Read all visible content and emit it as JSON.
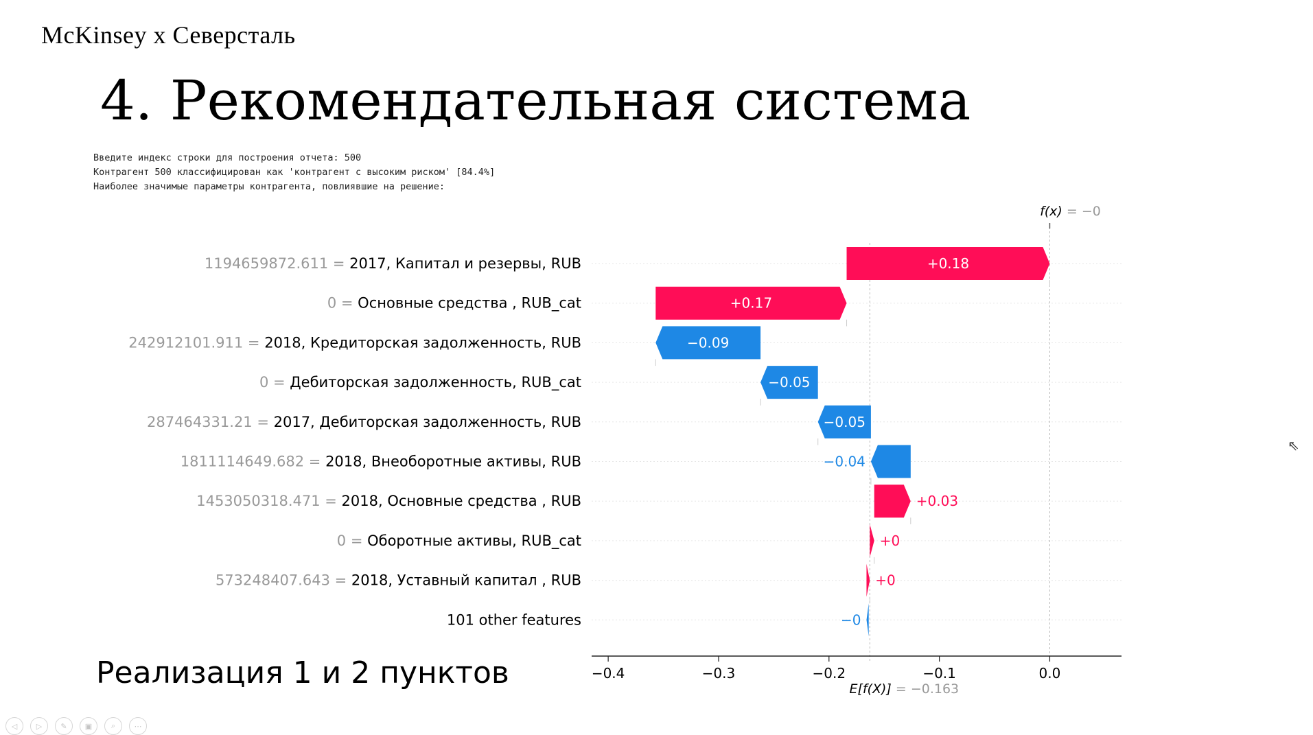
{
  "slide": {
    "brand": "McKinsey  x  Северсталь",
    "title": "4. Рекомендательная система",
    "subtitle": "Реализация 1 и 2 пунктов"
  },
  "console": [
    "Введите индекс строки для построения отчета: 500",
    "Контрагент 500 классифицирован как 'контрагент с высоким риском' [84.4%]",
    "Наиболее значимые параметры контрагента, повлиявшие на решение:"
  ],
  "chart_data": {
    "type": "waterfall",
    "fx_label": "f(x)",
    "fx_value": " = −0",
    "efx_label": "E[f(X)]",
    "efx_value": " = −0.163",
    "base_value": -0.163,
    "xlim": [
      -0.415,
      0.065
    ],
    "xticks": [
      -0.4,
      -0.3,
      -0.2,
      -0.1,
      0.0
    ],
    "xtick_labels": [
      "−0.4",
      "−0.3",
      "−0.2",
      "−0.1",
      "0.0"
    ],
    "colors": {
      "positive": "#ff0d57",
      "negative": "#1e88e5",
      "value_gray": "#999999"
    },
    "features": [
      {
        "value": "1194659872.611",
        "name": "2017, Капитал и резервы, RUB",
        "start": -0.184,
        "end": 0.0,
        "label": "+0.18"
      },
      {
        "value": "0",
        "name": "Основные средства , RUB_cat",
        "start": -0.357,
        "end": -0.184,
        "label": "+0.17"
      },
      {
        "value": "242912101.911",
        "name": "2018, Кредиторская задолженность, RUB",
        "start": -0.262,
        "end": -0.357,
        "label": "−0.09"
      },
      {
        "value": "0",
        "name": "Дебиторская задолженность, RUB_cat",
        "start": -0.21,
        "end": -0.262,
        "label": "−0.05"
      },
      {
        "value": "287464331.21",
        "name": "2017, Дебиторская задолженность, RUB",
        "start": -0.162,
        "end": -0.21,
        "label": "−0.05"
      },
      {
        "value": "1811114649.682",
        "name": "2018, Внеоборотные активы, RUB",
        "start": -0.126,
        "end": -0.162,
        "label": "−0.04"
      },
      {
        "value": "1453050318.471",
        "name": "2018, Основные средства , RUB",
        "start": -0.159,
        "end": -0.126,
        "label": "+0.03"
      },
      {
        "value": "0",
        "name": "Оборотные активы, RUB_cat",
        "start": -0.163,
        "end": -0.159,
        "label": "+0"
      },
      {
        "value": "573248407.643",
        "name": "2018, Уставный капитал , RUB",
        "start": -0.166,
        "end": -0.163,
        "label": "+0"
      },
      {
        "value": "",
        "name": "101 other features",
        "start": -0.164,
        "end": -0.166,
        "label": "−0"
      }
    ]
  }
}
